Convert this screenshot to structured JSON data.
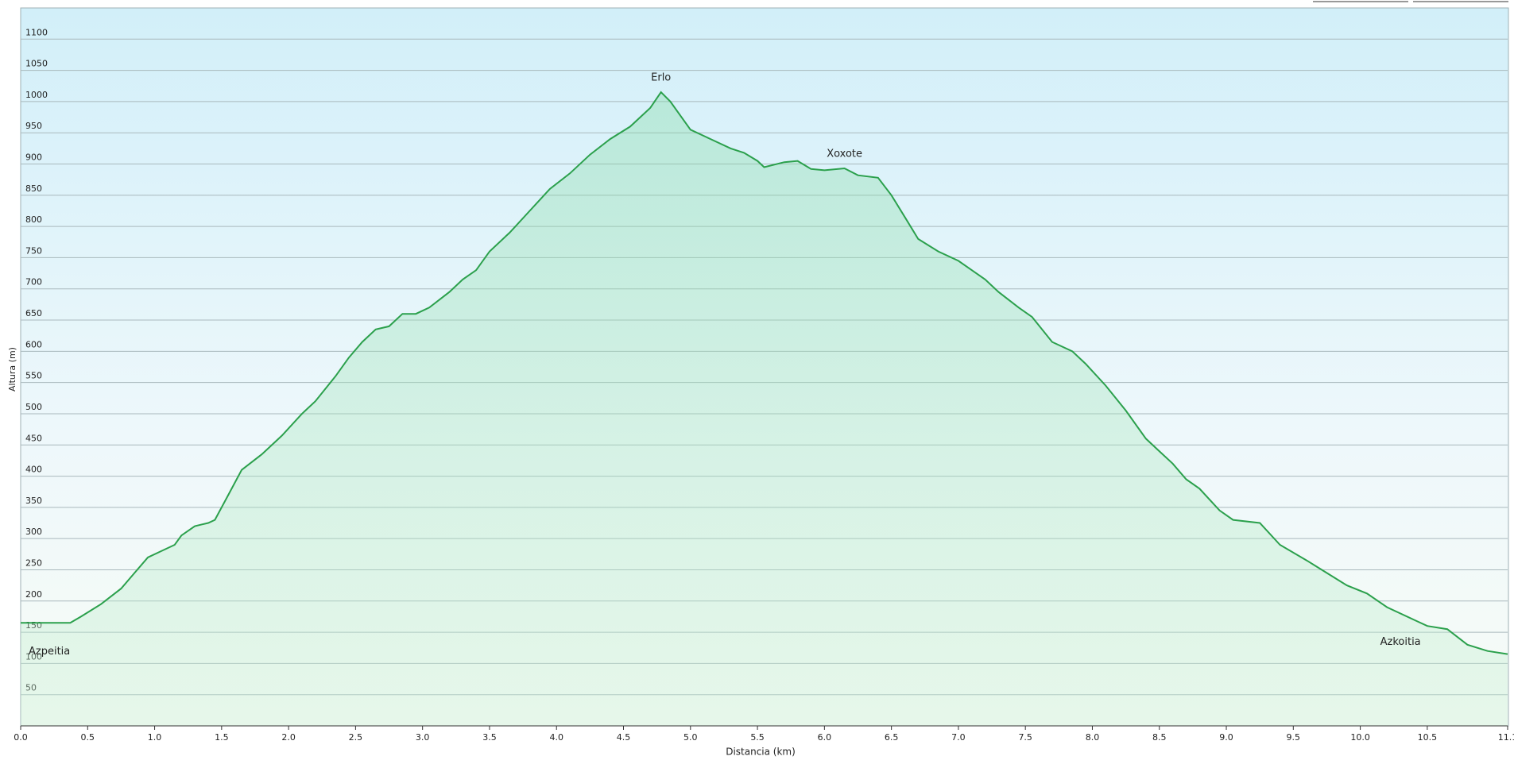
{
  "chart_data": {
    "type": "line",
    "x_label": "Distancia  (km)",
    "y_label": "Altura (m)",
    "xlim": [
      0,
      11.1
    ],
    "ylim": [
      0,
      1150
    ],
    "xticks": [
      {
        "value": 0,
        "label": "0.0"
      },
      0.5,
      {
        "value": 1,
        "label": "1.0"
      },
      1.5,
      {
        "value": 2,
        "label": "2.0"
      },
      2.5,
      {
        "value": 3,
        "label": "3.0"
      },
      3.5,
      {
        "value": 4,
        "label": "4.0"
      },
      4.5,
      {
        "value": 5,
        "label": "5.0"
      },
      5.5,
      {
        "value": 6,
        "label": "6.0"
      },
      6.5,
      {
        "value": 7,
        "label": "7.0"
      },
      7.5,
      {
        "value": 8,
        "label": "8.0"
      },
      8.5,
      {
        "value": 9,
        "label": "9.0"
      },
      9.5,
      {
        "value": 10,
        "label": "10.0"
      },
      10.5,
      11.1
    ],
    "yticks": [
      50,
      100,
      150,
      200,
      250,
      300,
      350,
      400,
      450,
      500,
      550,
      600,
      650,
      700,
      750,
      800,
      850,
      900,
      950,
      1000,
      1050,
      1100
    ],
    "grid": true,
    "series": [
      {
        "color": "#2ba04c",
        "x": [
          0,
          0.37,
          0.45,
          0.6,
          0.75,
          0.85,
          0.95,
          1.05,
          1.15,
          1.2,
          1.3,
          1.4,
          1.45,
          1.55,
          1.65,
          1.8,
          1.95,
          2.1,
          2.2,
          2.35,
          2.45,
          2.55,
          2.65,
          2.75,
          2.85,
          2.95,
          3.05,
          3.2,
          3.3,
          3.4,
          3.5,
          3.65,
          3.8,
          3.95,
          4.1,
          4.25,
          4.4,
          4.55,
          4.7,
          4.78,
          4.85,
          5.0,
          5.15,
          5.3,
          5.4,
          5.5,
          5.55,
          5.7,
          5.8,
          5.9,
          6.0,
          6.15,
          6.25,
          6.4,
          6.5,
          6.6,
          6.7,
          6.85,
          7.0,
          7.1,
          7.2,
          7.3,
          7.45,
          7.55,
          7.7,
          7.85,
          7.95,
          8.1,
          8.25,
          8.4,
          8.5,
          8.6,
          8.7,
          8.8,
          8.95,
          9.05,
          9.25,
          9.4,
          9.6,
          9.75,
          9.9,
          10.05,
          10.2,
          10.4,
          10.5,
          10.65,
          10.8,
          10.95,
          11.1
        ],
        "values": [
          165,
          165,
          175,
          195,
          220,
          245,
          270,
          280,
          290,
          305,
          320,
          325,
          330,
          370,
          410,
          435,
          465,
          500,
          520,
          560,
          590,
          615,
          635,
          640,
          660,
          660,
          670,
          695,
          715,
          730,
          760,
          790,
          825,
          860,
          885,
          915,
          940,
          960,
          990,
          1015,
          1000,
          955,
          940,
          925,
          918,
          905,
          895,
          903,
          905,
          892,
          890,
          893,
          882,
          878,
          850,
          815,
          780,
          760,
          745,
          730,
          715,
          695,
          670,
          655,
          615,
          600,
          580,
          545,
          505,
          460,
          440,
          420,
          395,
          380,
          345,
          330,
          325,
          290,
          265,
          245,
          225,
          212,
          190,
          170,
          160,
          155,
          130,
          120,
          115
        ]
      }
    ],
    "annotations": [
      {
        "text": "Azpeitia",
        "x": 0
      },
      {
        "text": "Erlo",
        "x": 4.78
      },
      {
        "text": "Xoxote",
        "x": 6.15
      },
      {
        "text": "Azkoitia",
        "x": 10.3
      }
    ]
  }
}
